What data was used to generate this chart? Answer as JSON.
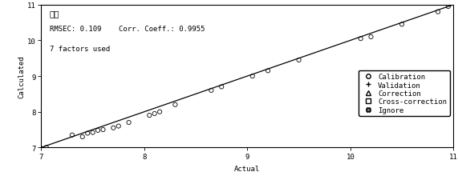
{
  "title": "水分",
  "annotation_line1": "RMSEC: 0.109    Corr. Coeff.: 0.9955",
  "annotation_line2": "7 factors used",
  "xlabel": "Actual",
  "ylabel": "Calculated",
  "xlim": [
    7,
    11
  ],
  "ylim": [
    7,
    11
  ],
  "xticks": [
    7,
    8,
    9,
    10,
    11
  ],
  "yticks": [
    7,
    8,
    9,
    10,
    11
  ],
  "calibration_x": [
    7.0,
    7.05,
    7.3,
    7.4,
    7.45,
    7.5,
    7.55,
    7.6,
    7.7,
    7.75,
    7.85,
    8.05,
    8.1,
    8.15,
    8.3,
    8.65,
    8.75,
    9.05,
    9.2,
    9.5,
    10.1,
    10.2,
    10.5,
    10.85,
    10.95
  ],
  "calibration_y": [
    6.97,
    7.0,
    7.35,
    7.3,
    7.4,
    7.42,
    7.48,
    7.5,
    7.55,
    7.6,
    7.7,
    7.9,
    7.95,
    8.0,
    8.2,
    8.6,
    8.7,
    9.0,
    9.15,
    9.45,
    10.05,
    10.1,
    10.45,
    10.8,
    10.95
  ],
  "line_x": [
    7,
    11
  ],
  "line_y": [
    7,
    11
  ],
  "bg_color": "#ffffff",
  "line_color": "#000000",
  "marker_color": "#000000",
  "marker_size": 14,
  "font_size": 6.5,
  "title_font_size": 7.5,
  "legend_entries": [
    "Calibration",
    "Validation",
    "Correction",
    "Cross-correction",
    "Ignore"
  ]
}
